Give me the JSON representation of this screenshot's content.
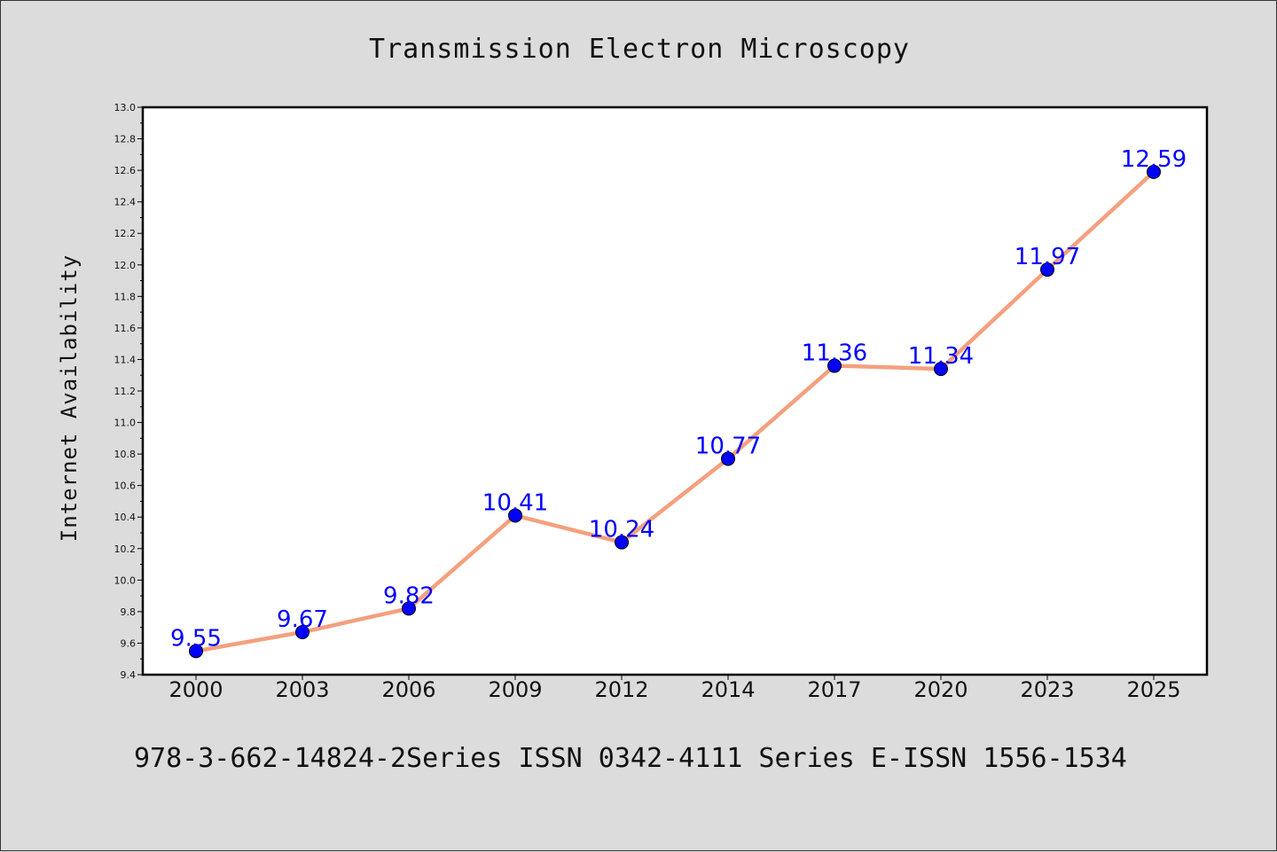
{
  "chart_data": {
    "type": "line",
    "title": "Transmission Electron Microscopy",
    "xlabel": "",
    "ylabel": "Internet Availability",
    "categories": [
      "2000",
      "2003",
      "2006",
      "2009",
      "2012",
      "2014",
      "2017",
      "2020",
      "2023",
      "2025"
    ],
    "series": [
      {
        "values": [
          9.55,
          9.67,
          9.82,
          10.41,
          10.24,
          10.77,
          11.36,
          11.34,
          11.97,
          12.59
        ],
        "data_labels": [
          "9.55",
          "9.67",
          "9.82",
          "10.41",
          "10.24",
          "10.77",
          "11.36",
          "11.34",
          "11.97",
          "12.59"
        ],
        "line_color": "#f4a07e",
        "marker_color": "#0000ff"
      }
    ],
    "ylim": [
      9.4,
      13.0
    ],
    "yticks": [
      "9.4",
      "9.6",
      "9.8",
      "10.0",
      "10.2",
      "10.4",
      "10.6",
      "10.8",
      "11.0",
      "11.2",
      "11.4",
      "11.6",
      "11.8",
      "12.0",
      "12.2",
      "12.4",
      "12.6",
      "12.8",
      "13.0"
    ],
    "grid": false,
    "legend": "none"
  },
  "footer": {
    "text": "978-3-662-14824-2Series ISSN 0342-4111 Series E-ISSN 1556-1534"
  },
  "colors": {
    "background": "#dcdcdc",
    "plot_background": "#ffffff",
    "line": "#f4a07e",
    "marker": "#0000ff",
    "data_label": "#0000ff"
  }
}
